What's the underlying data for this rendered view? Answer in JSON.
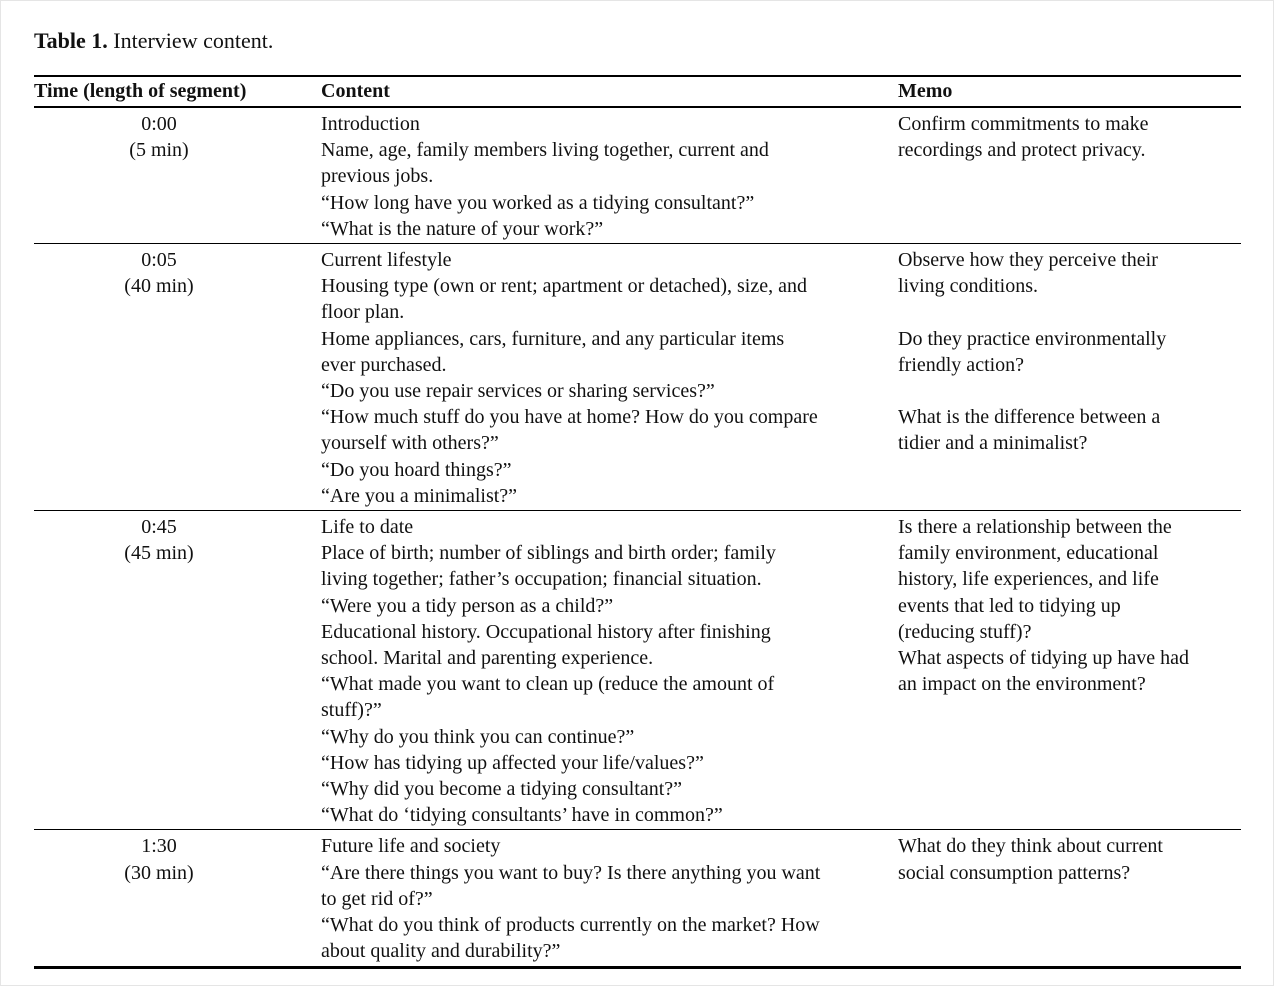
{
  "title": {
    "label": "Table 1.",
    "text": " Interview content."
  },
  "table": {
    "headers": [
      "Time (length of segment)",
      "Content",
      "Memo"
    ],
    "rows": [
      {
        "time": [
          "0:00",
          "(5 min)"
        ],
        "content": [
          "Introduction",
          "Name, age, family members living together, current and",
          "previous jobs.",
          "“How long have you worked as a tidying consultant?”",
          "“What is the nature of your work?”"
        ],
        "memo": [
          "Confirm commitments to make",
          "recordings and protect privacy."
        ]
      },
      {
        "time": [
          "0:05",
          "(40 min)"
        ],
        "content": [
          "Current lifestyle",
          "Housing type (own or rent; apartment or detached), size, and",
          "floor plan.",
          "Home appliances, cars, furniture, and any particular items",
          "ever purchased.",
          "“Do you use repair services or sharing services?”",
          "“How much stuff do you have at home? How do you compare",
          "yourself with others?”",
          "“Do you hoard things?”",
          "“Are you a minimalist?”"
        ],
        "memo": [
          "Observe how they perceive their",
          "living conditions.",
          "",
          "Do they practice environmentally",
          "friendly action?",
          "",
          "What is the difference between a",
          "tidier and a minimalist?"
        ]
      },
      {
        "time": [
          "0:45",
          "(45 min)"
        ],
        "content": [
          "Life to date",
          "Place of birth; number of siblings and birth order; family",
          "living together; father’s occupation; financial situation.",
          "“Were you a tidy person as a child?”",
          "Educational history. Occupational history after finishing",
          "school. Marital and parenting experience.",
          "“What made you want to clean up (reduce the amount of",
          "stuff)?”",
          "“Why do you think you can continue?”",
          "“How has tidying up affected your life/values?”",
          "“Why did you become a tidying consultant?”",
          "“What do ‘tidying consultants’ have in common?”"
        ],
        "memo": [
          "Is there a relationship between the",
          "family environment, educational",
          "history, life experiences, and life",
          "events that led to tidying up",
          "(reducing stuff)?",
          "What aspects of tidying up have had",
          "an impact on the environment?"
        ]
      },
      {
        "time": [
          "1:30",
          "(30 min)"
        ],
        "content": [
          "Future life and society",
          "“Are there things you want to buy? Is there anything you want",
          "to get rid of?”",
          "“What do you think of products currently on the market? How",
          "about quality and durability?”"
        ],
        "memo": [
          "What do they think about current",
          "social consumption patterns?"
        ]
      }
    ]
  }
}
